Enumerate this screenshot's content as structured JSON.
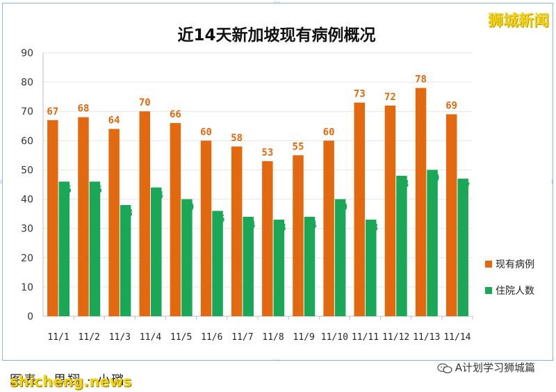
{
  "chart_data": {
    "type": "bar",
    "title": "近14天新加坡现有病例概况",
    "categories": [
      "11/1",
      "11/2",
      "11/3",
      "11/4",
      "11/5",
      "11/6",
      "11/7",
      "11/8",
      "11/9",
      "11/10",
      "11/11",
      "11/12",
      "11/13",
      "11/14"
    ],
    "series": [
      {
        "name": "现有病例",
        "values": [
          67,
          68,
          64,
          70,
          66,
          60,
          58,
          53,
          55,
          60,
          73,
          72,
          78,
          69
        ],
        "color": "#e2690f"
      },
      {
        "name": "住院人数",
        "values": [
          46,
          46,
          38,
          44,
          40,
          36,
          34,
          33,
          34,
          40,
          33,
          48,
          50,
          47
        ],
        "color": "#1aa858"
      }
    ],
    "ylim": [
      0,
      90
    ],
    "yticks": [
      0,
      10,
      20,
      30,
      40,
      50,
      60,
      70,
      80,
      90
    ],
    "grid": true,
    "legend_position": "right",
    "xlabel": "",
    "ylabel": ""
  },
  "watermark": "狮城新闻",
  "credit": "图表 · 思翔 · 小璐",
  "site": "shicheng.news",
  "wechat": "A计划学习狮城篇"
}
